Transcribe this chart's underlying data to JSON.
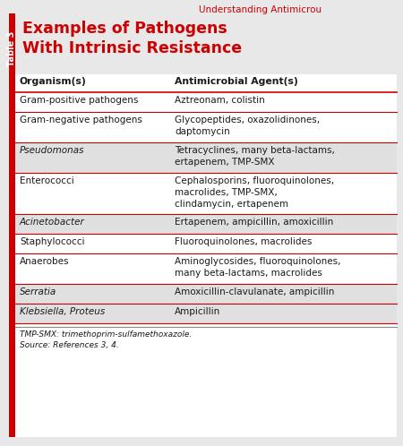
{
  "page_title": "Understanding Antimicrou",
  "table_number": "Table 3",
  "table_title_line1": "Examples of Pathogens",
  "table_title_line2": "With Intrinsic Resistance",
  "col1_header": "Organism(s)",
  "col2_header": "Antimicrobial Agent(s)",
  "rows": [
    {
      "organism": "Gram-positive pathogens",
      "italic": false,
      "agents": "Aztreonam, colistin",
      "shaded": false
    },
    {
      "organism": "Gram-negative pathogens",
      "italic": false,
      "agents": "Glycopeptides, oxazolidinones,\ndaptomycin",
      "shaded": false
    },
    {
      "organism": "Pseudomonas",
      "italic": true,
      "agents": "Tetracyclines, many beta-lactams,\nertapenem, TMP-SMX",
      "shaded": true
    },
    {
      "organism": "Enterococci",
      "italic": false,
      "agents": "Cephalosporins, fluoroquinolones,\nmacrolides, TMP-SMX,\nclindamycin, ertapenem",
      "shaded": false
    },
    {
      "organism": "Acinetobacter",
      "italic": true,
      "agents": "Ertapenem, ampicillin, amoxicillin",
      "shaded": true
    },
    {
      "organism": "Staphylococci",
      "italic": false,
      "agents": "Fluoroquinolones, macrolides",
      "shaded": false
    },
    {
      "organism": "Anaerobes",
      "italic": false,
      "agents": "Aminoglycosides, fluoroquinolones,\nmany beta-lactams, macrolides",
      "shaded": false
    },
    {
      "organism": "Serratia",
      "italic": true,
      "agents": "Amoxicillin-clavulanate, ampicillin",
      "shaded": true
    },
    {
      "organism": "Klebsiella, Proteus",
      "italic": true,
      "agents": "Ampicillin",
      "shaded": true
    }
  ],
  "footnote1": "TMP-SMX: trimethoprim-sulfamethoxazole.",
  "footnote2": "Source: References 3, 4.",
  "bg_color": "#e8e8e8",
  "white": "#ffffff",
  "shaded_row_color": "#e0e0e0",
  "red_color": "#cc0000",
  "text_color": "#1a1a1a",
  "title_color": "#cc0000"
}
